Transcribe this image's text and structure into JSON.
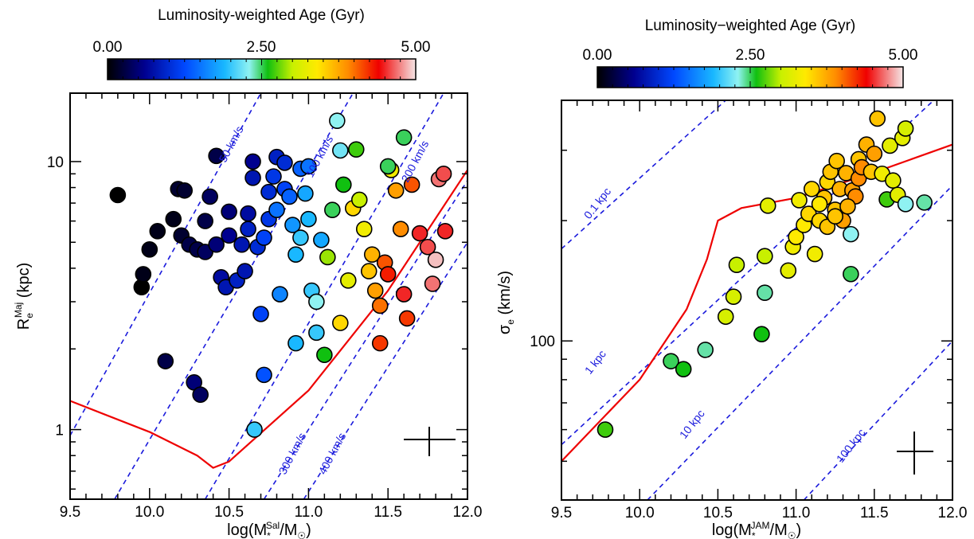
{
  "chart_data": [
    {
      "type": "scatter",
      "colorbar": {
        "title": "Luminosity-weighted Age (Gyr)",
        "tick_labels": [
          "0.00",
          "2.50",
          "5.00"
        ],
        "range": [
          0,
          5
        ]
      },
      "xlabel_parts": {
        "base": "log(M",
        "sub": "*",
        "sup": "Sal",
        "tail": "/M",
        "sun_sub": "☉",
        "close": ")"
      },
      "ylabel_parts": {
        "base": "R",
        "sub": "e",
        "sup": "Maj",
        "tail": " (kpc)"
      },
      "xlim": [
        9.5,
        12.0
      ],
      "ylim": [
        0.55,
        18
      ],
      "ylog": true,
      "x_tick_labels": [
        "9.5",
        "10.0",
        "10.5",
        "11.0",
        "11.5",
        "12.0"
      ],
      "y_tick_labels": [
        "1",
        "10"
      ],
      "line_labels": [
        "50 km/s",
        "100 km/s",
        "200 km/s",
        "300 km/s",
        "400 km/s"
      ],
      "points": [
        [
          9.8,
          7.5,
          0.0
        ],
        [
          9.95,
          3.4,
          0.0
        ],
        [
          9.96,
          3.8,
          0.1
        ],
        [
          10.0,
          4.7,
          0.1
        ],
        [
          10.05,
          5.5,
          0.1
        ],
        [
          10.1,
          1.8,
          0.3
        ],
        [
          10.15,
          6.1,
          0.1
        ],
        [
          10.18,
          7.9,
          0.2
        ],
        [
          10.2,
          5.3,
          0.2
        ],
        [
          10.22,
          7.8,
          0.2
        ],
        [
          10.25,
          4.9,
          0.3
        ],
        [
          10.28,
          1.5,
          0.5
        ],
        [
          10.32,
          1.35,
          0.4
        ],
        [
          10.3,
          4.7,
          0.3
        ],
        [
          10.35,
          4.6,
          0.4
        ],
        [
          10.35,
          6.0,
          0.3
        ],
        [
          10.38,
          7.4,
          0.4
        ],
        [
          10.42,
          10.5,
          0.3
        ],
        [
          10.42,
          4.9,
          0.5
        ],
        [
          10.45,
          3.7,
          0.7
        ],
        [
          10.48,
          3.4,
          0.8
        ],
        [
          10.5,
          5.3,
          0.6
        ],
        [
          10.5,
          6.5,
          0.5
        ],
        [
          10.55,
          3.6,
          0.9
        ],
        [
          10.58,
          4.9,
          0.8
        ],
        [
          10.6,
          3.9,
          0.8
        ],
        [
          10.62,
          5.6,
          0.9
        ],
        [
          10.62,
          6.4,
          0.7
        ],
        [
          10.65,
          8.7,
          0.8
        ],
        [
          10.65,
          10.0,
          0.6
        ],
        [
          10.68,
          4.8,
          1.0
        ],
        [
          10.7,
          2.7,
          1.2
        ],
        [
          10.72,
          1.6,
          1.3
        ],
        [
          10.66,
          1.0,
          2.0
        ],
        [
          10.72,
          5.2,
          1.2
        ],
        [
          10.75,
          6.1,
          1.1
        ],
        [
          10.75,
          7.7,
          1.0
        ],
        [
          10.78,
          8.8,
          1.1
        ],
        [
          10.8,
          10.4,
          0.9
        ],
        [
          10.8,
          6.6,
          1.5
        ],
        [
          10.82,
          3.2,
          1.6
        ],
        [
          10.85,
          9.9,
          1.0
        ],
        [
          10.85,
          7.9,
          1.2
        ],
        [
          10.88,
          7.4,
          1.4
        ],
        [
          10.9,
          5.8,
          1.7
        ],
        [
          10.92,
          4.5,
          1.9
        ],
        [
          10.92,
          2.1,
          1.9
        ],
        [
          10.95,
          9.4,
          1.4
        ],
        [
          10.95,
          5.2,
          2.0
        ],
        [
          10.98,
          7.6,
          1.8
        ],
        [
          11.0,
          9.6,
          1.5
        ],
        [
          11.0,
          6.1,
          1.9
        ],
        [
          11.02,
          3.3,
          2.0
        ],
        [
          11.05,
          3.0,
          2.3
        ],
        [
          11.05,
          2.3,
          2.0
        ],
        [
          11.08,
          5.1,
          1.8
        ],
        [
          11.1,
          1.9,
          2.6
        ],
        [
          11.12,
          4.4,
          2.9
        ],
        [
          11.15,
          6.6,
          2.5
        ],
        [
          11.18,
          14.2,
          2.3
        ],
        [
          11.2,
          11.0,
          2.2
        ],
        [
          11.22,
          8.2,
          2.6
        ],
        [
          11.25,
          3.6,
          3.2
        ],
        [
          11.28,
          6.7,
          3.5
        ],
        [
          11.3,
          11.1,
          2.7
        ],
        [
          11.32,
          7.2,
          3.0
        ],
        [
          11.35,
          5.6,
          3.3
        ],
        [
          11.38,
          3.9,
          3.6
        ],
        [
          11.4,
          4.5,
          3.7
        ],
        [
          11.42,
          3.3,
          3.8
        ],
        [
          11.45,
          2.9,
          4.0
        ],
        [
          11.48,
          4.2,
          4.1
        ],
        [
          11.5,
          3.8,
          4.3
        ],
        [
          11.52,
          9.3,
          3.3
        ],
        [
          11.55,
          7.8,
          3.8
        ],
        [
          11.58,
          5.6,
          3.9
        ],
        [
          11.6,
          3.2,
          4.5
        ],
        [
          11.62,
          2.6,
          4.2
        ],
        [
          11.65,
          8.2,
          4.1
        ],
        [
          11.7,
          5.4,
          4.5
        ],
        [
          11.75,
          4.8,
          4.6
        ],
        [
          11.78,
          3.5,
          4.7
        ],
        [
          11.82,
          8.6,
          4.7
        ],
        [
          11.85,
          9.0,
          4.6
        ],
        [
          11.86,
          5.5,
          4.5
        ],
        [
          11.6,
          12.3,
          2.5
        ],
        [
          11.5,
          9.6,
          2.5
        ],
        [
          11.8,
          4.3,
          4.9
        ],
        [
          11.45,
          2.1,
          4.2
        ],
        [
          11.2,
          2.5,
          3.5
        ]
      ],
      "red_curve": [
        [
          9.5,
          1.28
        ],
        [
          10.0,
          0.98
        ],
        [
          10.3,
          0.8
        ],
        [
          10.4,
          0.72
        ],
        [
          10.5,
          0.76
        ],
        [
          11.0,
          1.4
        ],
        [
          11.5,
          3.3
        ],
        [
          12.0,
          9.3
        ]
      ],
      "reference_lines": [
        {
          "label": "50 km/s",
          "points": [
            [
              9.5,
              0.95
            ],
            [
              10.7,
              18
            ]
          ]
        },
        {
          "label": "100 km/s",
          "points": [
            [
              9.78,
              0.55
            ],
            [
              11.28,
              18
            ]
          ]
        },
        {
          "label": "200 km/s",
          "points": [
            [
              10.35,
              0.55
            ],
            [
              11.85,
              18
            ]
          ]
        },
        {
          "label": "300 km/s",
          "points": [
            [
              10.72,
              0.55
            ],
            [
              12.0,
              8.5
            ]
          ]
        },
        {
          "label": "400 km/s",
          "points": [
            [
              10.97,
              0.55
            ],
            [
              12.0,
              5.0
            ]
          ]
        }
      ]
    },
    {
      "type": "scatter",
      "colorbar": {
        "title": "Luminosity−weighted Age (Gyr)",
        "tick_labels": [
          "0.00",
          "2.50",
          "5.00"
        ],
        "range": [
          0,
          5
        ]
      },
      "xlabel_parts": {
        "base": "log(M",
        "sub": "*",
        "sup": "JAM",
        "tail": "/M",
        "sun_sub": "☉",
        "close": ")"
      },
      "ylabel_parts": {
        "base": "σ",
        "sub": "e",
        "sup": "",
        "tail": " (km/s)"
      },
      "xlim": [
        9.5,
        12.0
      ],
      "ylim": [
        40,
        400
      ],
      "ylog": true,
      "x_tick_labels": [
        "9.5",
        "10.0",
        "10.5",
        "11.0",
        "11.5",
        "12.0"
      ],
      "y_tick_labels": [
        "100"
      ],
      "line_labels": [
        "0.1 kpc",
        "1 kpc",
        "10 kpc",
        "100 kpc"
      ],
      "points": [
        [
          9.78,
          60,
          2.7
        ],
        [
          10.2,
          89,
          2.5
        ],
        [
          10.28,
          85,
          2.6
        ],
        [
          10.42,
          95,
          2.4
        ],
        [
          10.55,
          115,
          3.1
        ],
        [
          10.6,
          129,
          3.1
        ],
        [
          10.62,
          155,
          3.0
        ],
        [
          10.78,
          104,
          2.6
        ],
        [
          10.8,
          132,
          2.4
        ],
        [
          10.8,
          163,
          3.0
        ],
        [
          10.82,
          218,
          3.2
        ],
        [
          10.95,
          150,
          3.2
        ],
        [
          10.98,
          172,
          3.3
        ],
        [
          11.0,
          182,
          3.4
        ],
        [
          11.02,
          225,
          3.3
        ],
        [
          11.05,
          195,
          3.4
        ],
        [
          11.08,
          208,
          3.5
        ],
        [
          11.1,
          240,
          3.5
        ],
        [
          11.12,
          165,
          3.3
        ],
        [
          11.15,
          200,
          3.5
        ],
        [
          11.18,
          228,
          3.6
        ],
        [
          11.2,
          193,
          3.6
        ],
        [
          11.2,
          250,
          3.5
        ],
        [
          11.22,
          265,
          3.6
        ],
        [
          11.25,
          213,
          3.6
        ],
        [
          11.26,
          282,
          3.6
        ],
        [
          11.28,
          240,
          3.7
        ],
        [
          11.3,
          200,
          3.8
        ],
        [
          11.32,
          263,
          3.7
        ],
        [
          11.35,
          147,
          2.5
        ],
        [
          11.35,
          185,
          2.3
        ],
        [
          11.36,
          238,
          3.8
        ],
        [
          11.38,
          230,
          3.9
        ],
        [
          11.4,
          255,
          3.9
        ],
        [
          11.4,
          285,
          3.6
        ],
        [
          11.42,
          272,
          3.9
        ],
        [
          11.45,
          310,
          3.7
        ],
        [
          11.48,
          265,
          3.6
        ],
        [
          11.5,
          294,
          3.8
        ],
        [
          11.52,
          360,
          3.6
        ],
        [
          11.55,
          262,
          3.3
        ],
        [
          11.58,
          226,
          2.7
        ],
        [
          11.6,
          308,
          3.2
        ],
        [
          11.62,
          252,
          3.2
        ],
        [
          11.65,
          232,
          3.2
        ],
        [
          11.68,
          322,
          3.2
        ],
        [
          11.7,
          340,
          3.1
        ],
        [
          11.7,
          220,
          2.3
        ],
        [
          11.82,
          222,
          2.4
        ],
        [
          11.15,
          220,
          3.4
        ],
        [
          11.25,
          205,
          3.6
        ],
        [
          11.33,
          217,
          3.7
        ]
      ],
      "red_curve": [
        [
          9.5,
          50
        ],
        [
          10.0,
          80
        ],
        [
          10.3,
          120
        ],
        [
          10.43,
          160
        ],
        [
          10.5,
          200
        ],
        [
          10.65,
          215
        ],
        [
          11.0,
          228
        ],
        [
          11.5,
          264
        ],
        [
          12.0,
          310
        ]
      ],
      "reference_lines": [
        {
          "label": "0.1 kpc",
          "points": [
            [
              9.5,
              170
            ],
            [
              10.55,
              400
            ]
          ]
        },
        {
          "label": "1 kpc",
          "points": [
            [
              9.5,
              55
            ],
            [
              11.88,
              400
            ]
          ]
        },
        {
          "label": "10 kpc",
          "points": [
            [
              10.05,
              40
            ],
            [
              12.0,
              245
            ]
          ]
        },
        {
          "label": "100 kpc",
          "points": [
            [
              11.05,
              40
            ],
            [
              12.0,
              100
            ]
          ]
        }
      ]
    }
  ]
}
